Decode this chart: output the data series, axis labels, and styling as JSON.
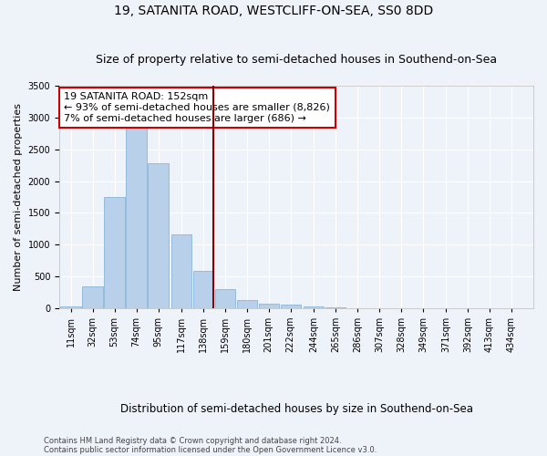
{
  "title": "19, SATANITA ROAD, WESTCLIFF-ON-SEA, SS0 8DD",
  "subtitle": "Size of property relative to semi-detached houses in Southend-on-Sea",
  "xlabel": "Distribution of semi-detached houses by size in Southend-on-Sea",
  "ylabel": "Number of semi-detached properties",
  "footnote1": "Contains HM Land Registry data © Crown copyright and database right 2024.",
  "footnote2": "Contains public sector information licensed under the Open Government Licence v3.0.",
  "annotation_title": "19 SATANITA ROAD: 152sqm",
  "annotation_line1": "← 93% of semi-detached houses are smaller (8,826)",
  "annotation_line2": "7% of semi-detached houses are larger (686) →",
  "property_size": 152,
  "bar_categories": [
    "11sqm",
    "32sqm",
    "53sqm",
    "74sqm",
    "95sqm",
    "117sqm",
    "138sqm",
    "159sqm",
    "180sqm",
    "201sqm",
    "222sqm",
    "244sqm",
    "265sqm",
    "286sqm",
    "307sqm",
    "328sqm",
    "349sqm",
    "371sqm",
    "392sqm",
    "413sqm",
    "434sqm"
  ],
  "bar_values": [
    30,
    340,
    1750,
    2930,
    2280,
    1160,
    590,
    300,
    135,
    75,
    55,
    25,
    15,
    5,
    0,
    0,
    0,
    0,
    0,
    0,
    0
  ],
  "bar_color": "#b8d0ea",
  "bar_edge_color": "#7aadd4",
  "vline_color": "#8b0000",
  "ylim": [
    0,
    3500
  ],
  "xlim_min": 0,
  "xlim_max": 455,
  "background_color": "#eef2f9",
  "grid_color": "#ffffff",
  "annotation_box_edge": "#cc0000",
  "title_fontsize": 10,
  "subtitle_fontsize": 9,
  "xlabel_fontsize": 8.5,
  "ylabel_fontsize": 8,
  "footnote_fontsize": 6,
  "annot_fontsize": 8,
  "tick_fontsize": 7
}
